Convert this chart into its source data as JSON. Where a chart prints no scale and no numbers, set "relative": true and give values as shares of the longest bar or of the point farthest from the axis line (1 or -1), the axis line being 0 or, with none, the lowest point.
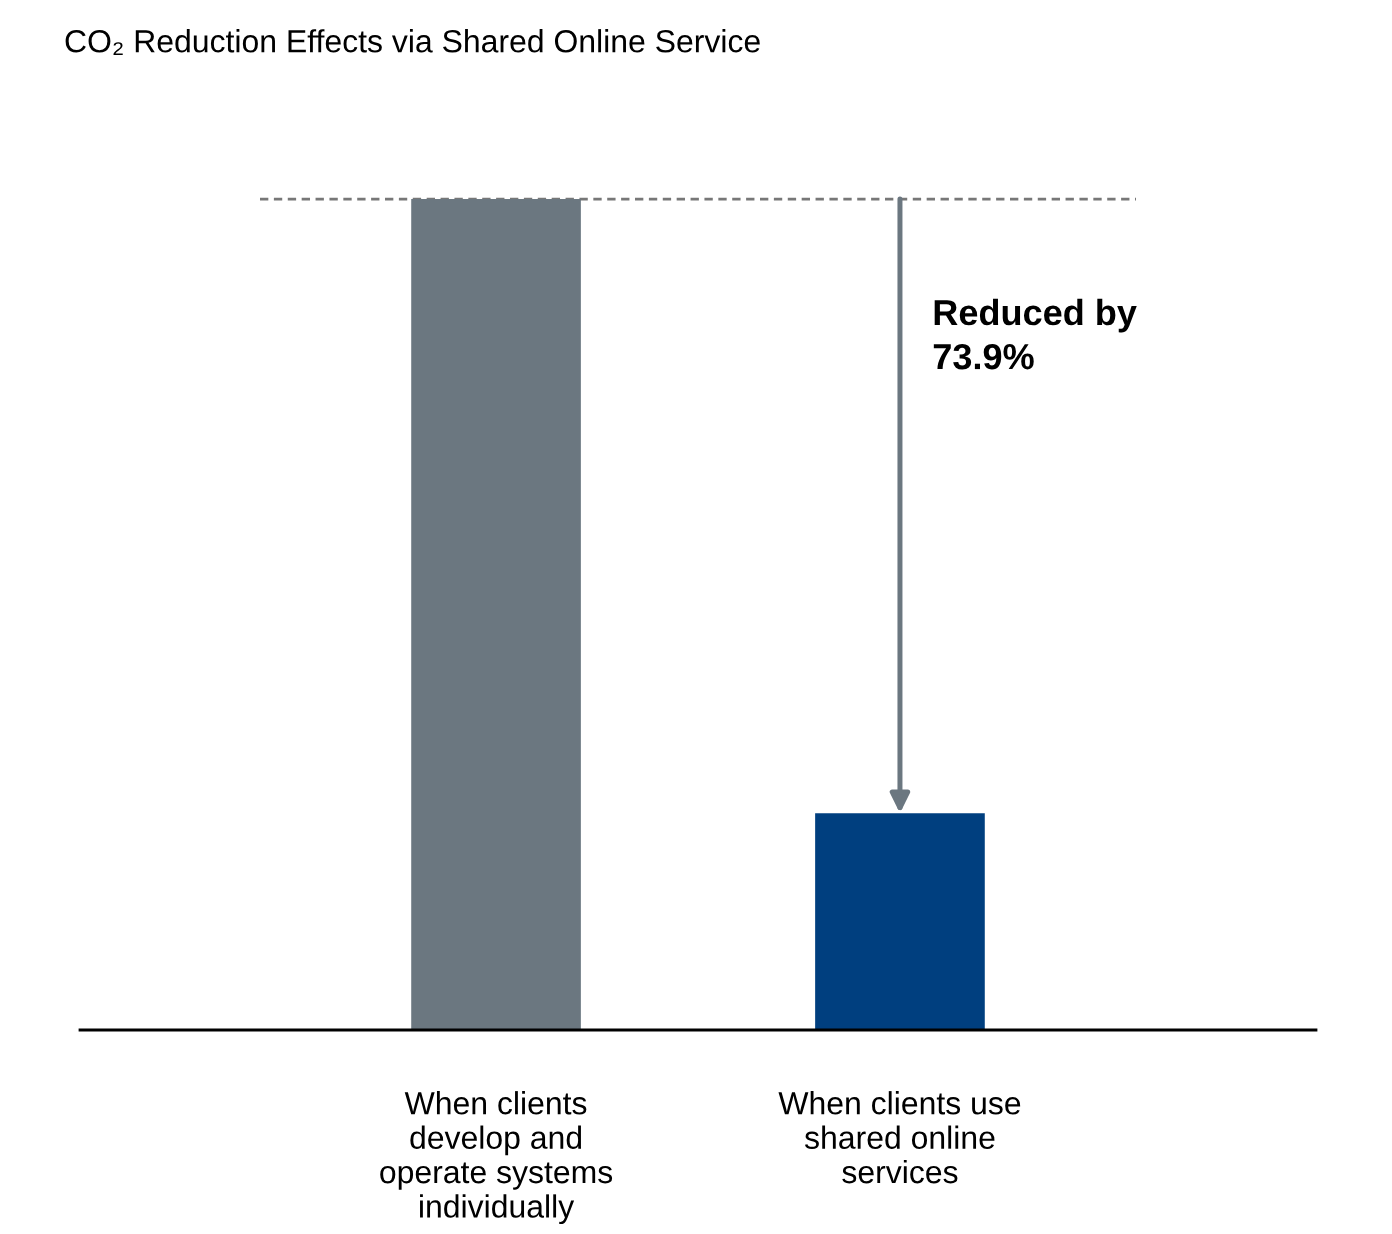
{
  "chart_data": {
    "type": "bar",
    "title": "CO₂ Reduction Effects via Shared Online Service",
    "categories": [
      "When clients\ndevelop and\noperate systems\nindividually",
      "When clients use\nshared online\nservices"
    ],
    "values": [
      1,
      0.261
    ],
    "colors": [
      "#6b7780",
      "#003f7f"
    ],
    "relative": true,
    "annotations": [
      "Reduced by\n73.9%"
    ],
    "ref_lines": [
      {
        "axis": "y",
        "value": 1,
        "label": null,
        "color": "#777777",
        "line_style": "dashed"
      }
    ],
    "grid": false,
    "legend": false
  }
}
